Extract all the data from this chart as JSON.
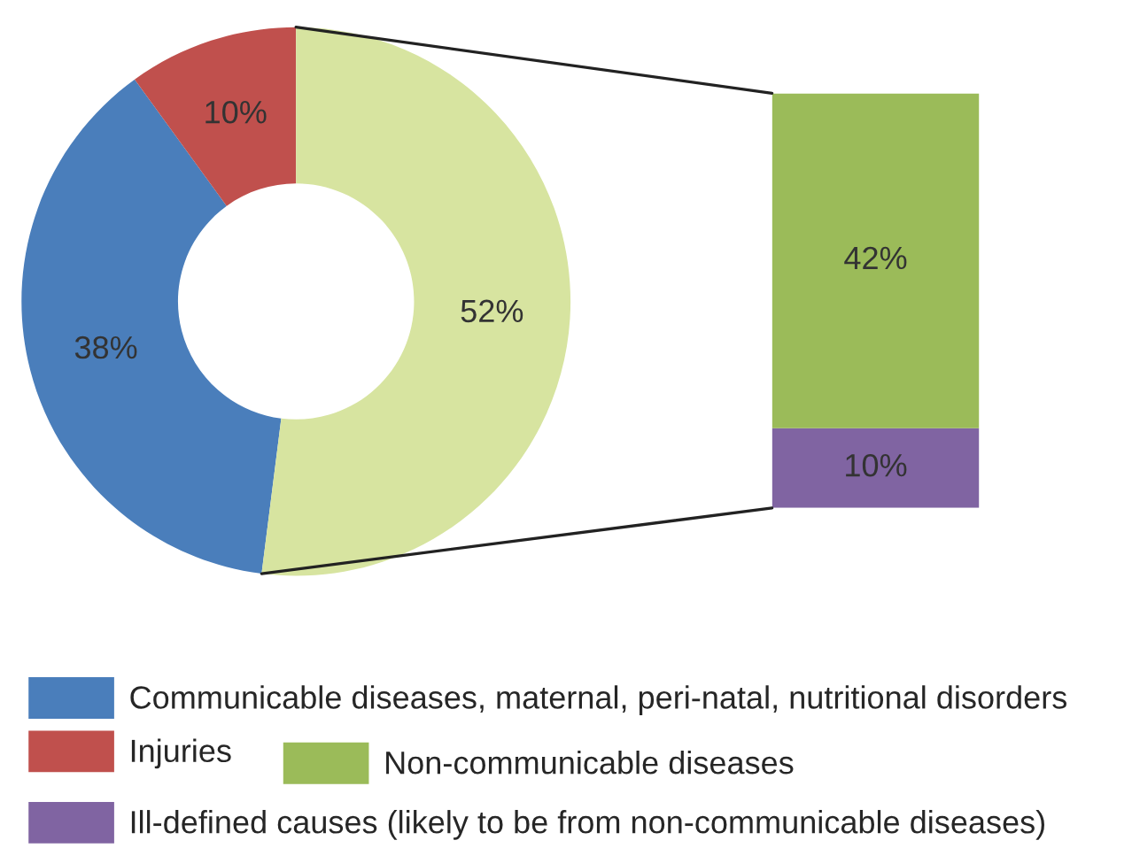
{
  "chart_data": [
    {
      "type": "donut",
      "categories": [
        "Communicable diseases, maternal, peri-natal, nutritional disorders",
        "Injuries",
        null
      ],
      "values": [
        38,
        10,
        52
      ],
      "value_labels": [
        "38%",
        "10%",
        "52%"
      ],
      "colors": [
        "#4a7ebb",
        "#c0504d",
        "#d7e4a0"
      ],
      "legend": "bottom"
    },
    {
      "type": "bar",
      "stacked": true,
      "categories": [
        null
      ],
      "legend": "bottom",
      "series": [
        {
          "name": "Ill-defined causes (likely to be from non-communicable diseases)",
          "color": "#8064a2",
          "values": [
            10
          ],
          "value_labels": [
            "10%"
          ]
        },
        {
          "name": "Non-communicable diseases",
          "color": "#9bbb59",
          "values": [
            42
          ],
          "value_labels": [
            "42%"
          ]
        }
      ]
    }
  ]
}
